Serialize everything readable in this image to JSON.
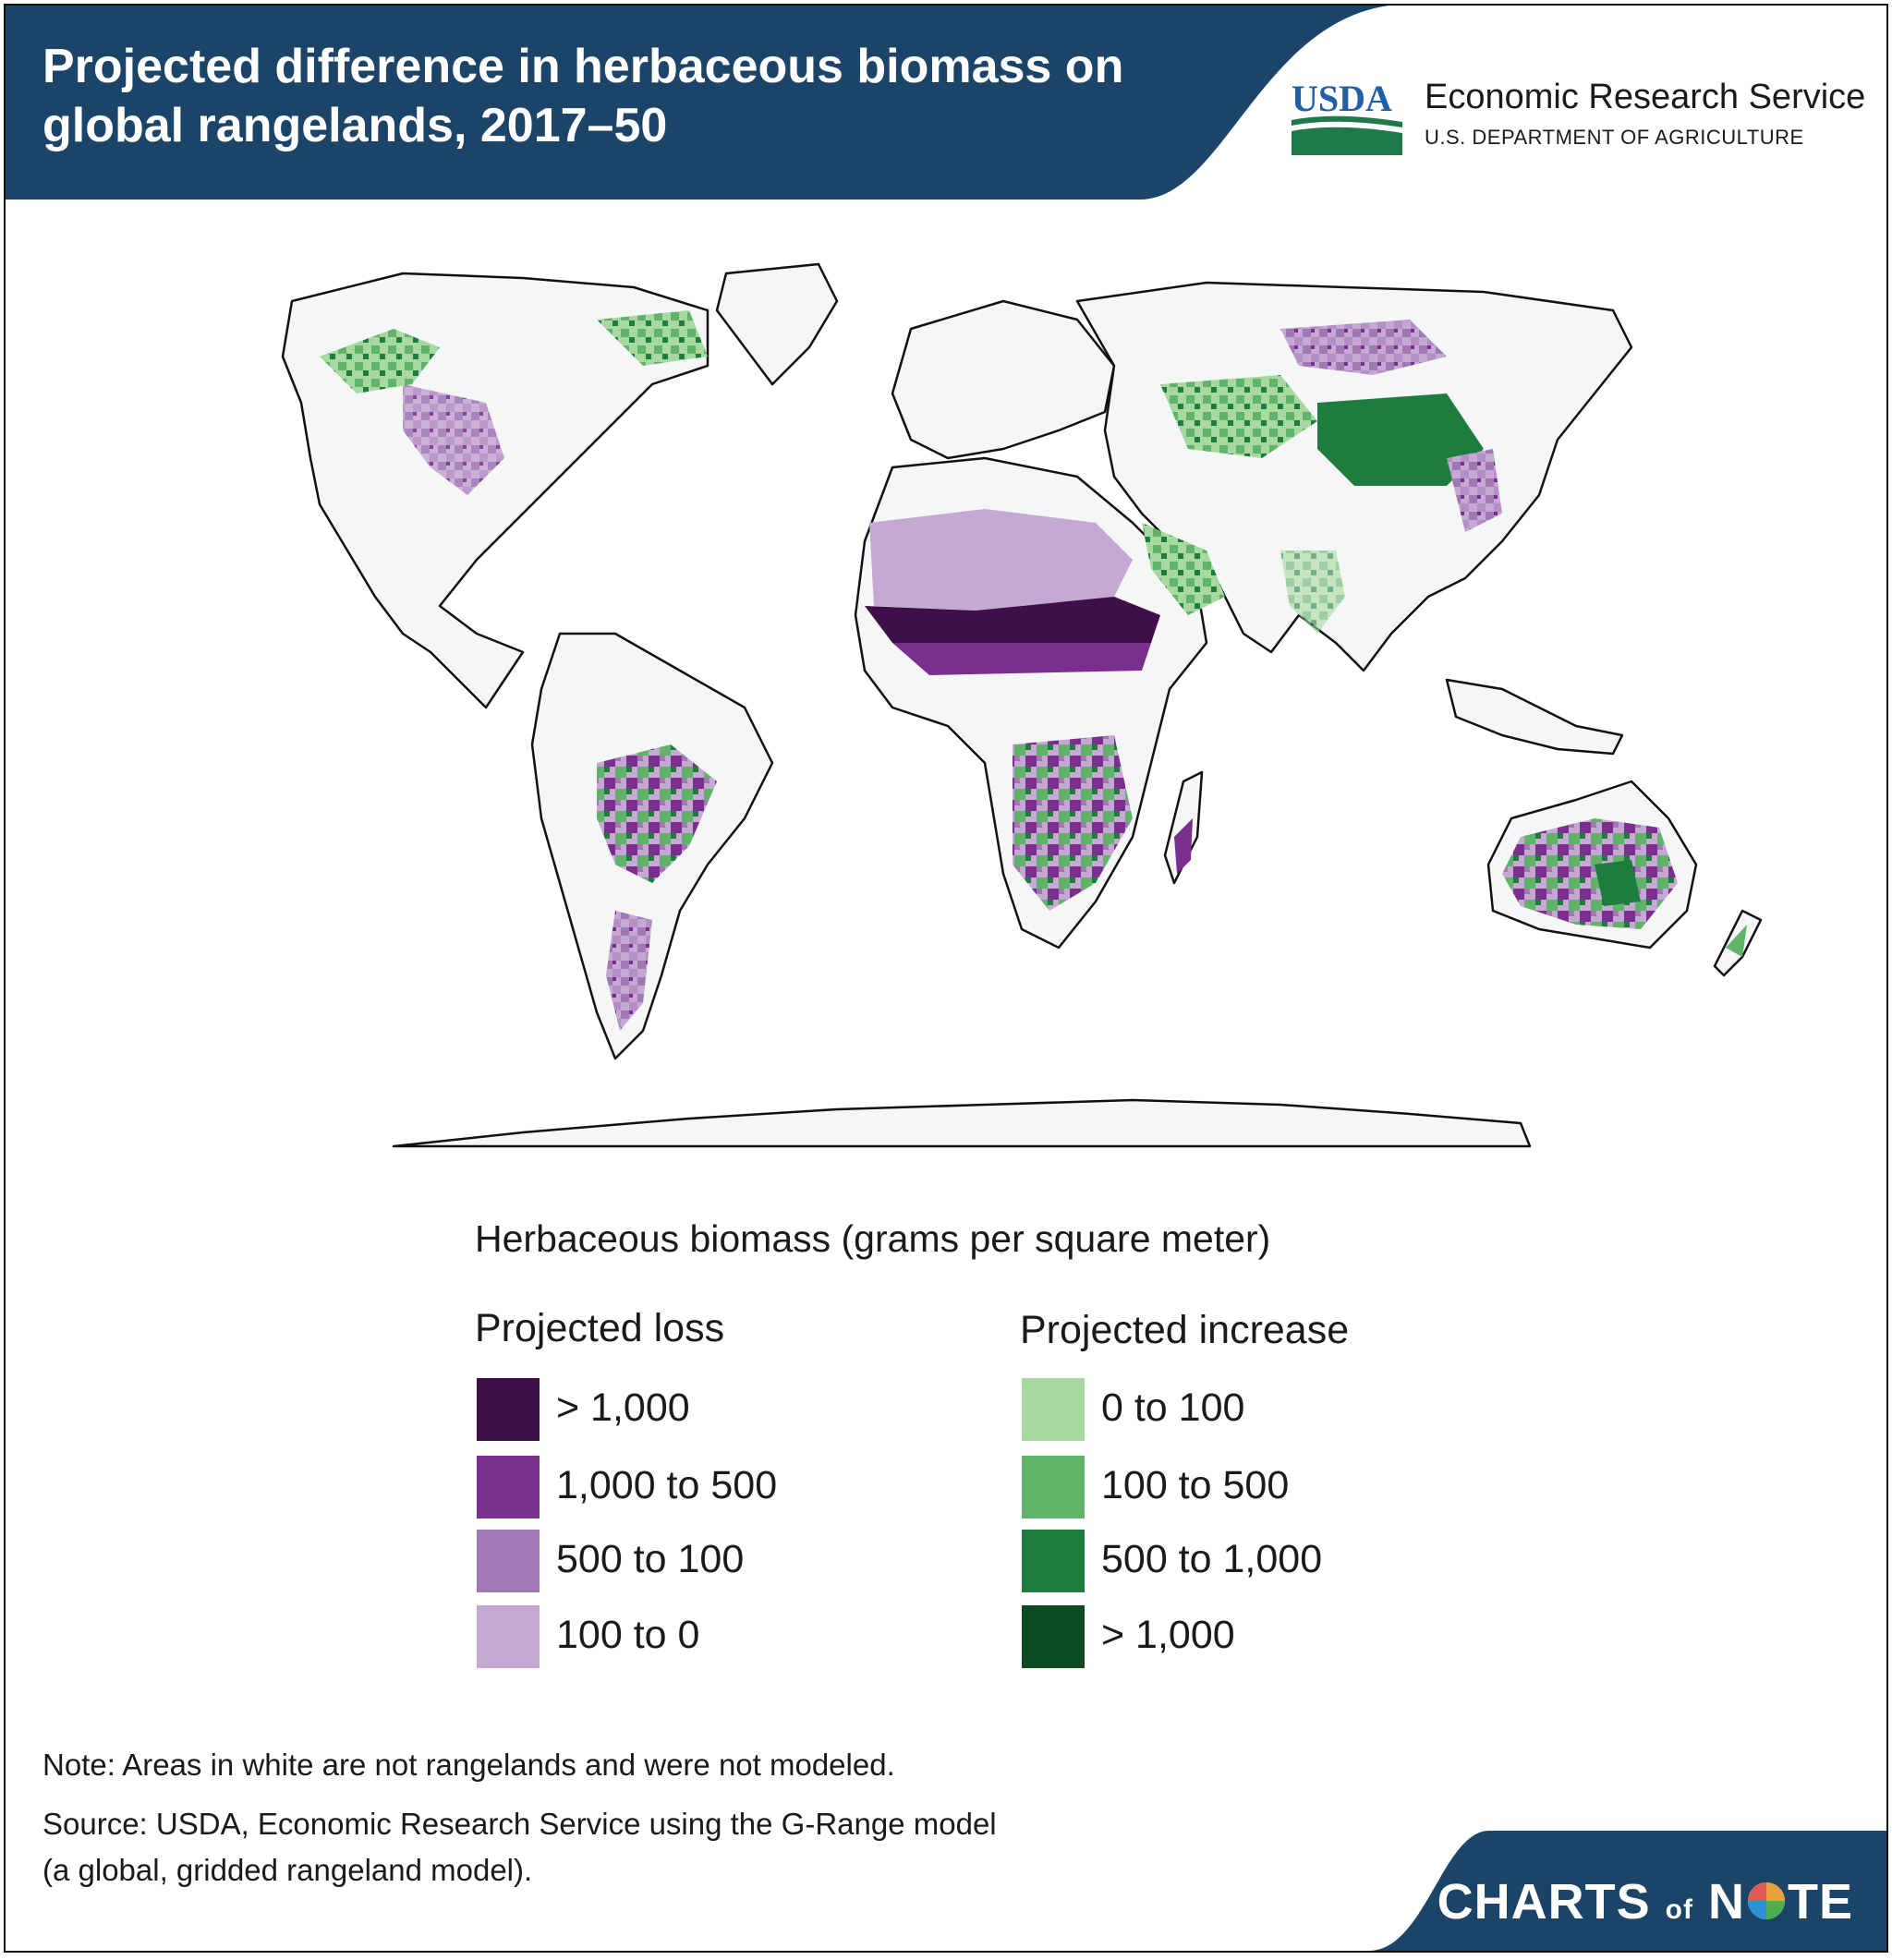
{
  "header": {
    "title": "Projected difference in herbaceous biomass on global rangelands, 2017–50",
    "logo_text": "USDA",
    "agency": "Economic Research Service",
    "department": "U.S. DEPARTMENT OF AGRICULTURE"
  },
  "colors": {
    "header_navy": "#1b4468",
    "loss_gt_1000": "#3f0f4a",
    "loss_1000_500": "#7a2f8e",
    "loss_500_100": "#a079b4",
    "loss_100_0": "#c6a8d4",
    "gain_0_100": "#a6d8a0",
    "gain_100_500": "#5fb46a",
    "gain_500_1000": "#1c7d3f",
    "gain_gt_1000": "#0c4a22",
    "land_not_modeled": "#f5f7f6"
  },
  "legend": {
    "title": "Herbaceous biomass (grams per square meter)",
    "loss": {
      "title": "Projected loss",
      "items": [
        {
          "label": "> 1,000",
          "color": "#3f0f4a"
        },
        {
          "label": "1,000 to 500",
          "color": "#7a2f8e"
        },
        {
          "label": "500 to 100",
          "color": "#a079b4"
        },
        {
          "label": "100 to 0",
          "color": "#c6a8d4"
        }
      ]
    },
    "increase": {
      "title": "Projected increase",
      "items": [
        {
          "label": "0 to 100",
          "color": "#a6d8a0"
        },
        {
          "label": "100 to 500",
          "color": "#5fb46a"
        },
        {
          "label": "500 to 1,000",
          "color": "#1c7d3f"
        },
        {
          "label": "> 1,000",
          "color": "#0c4a22"
        }
      ]
    }
  },
  "notes": {
    "note": "Note: Areas in white are not rangelands and were not modeled.",
    "source_line1": "Source: USDA, Economic Research Service using the G-Range model",
    "source_line2": "(a global, gridded rangeland model)."
  },
  "footer": {
    "brand_part1": "CHARTS",
    "brand_part2": "of",
    "brand_part3": "N",
    "brand_part4": "TE"
  }
}
